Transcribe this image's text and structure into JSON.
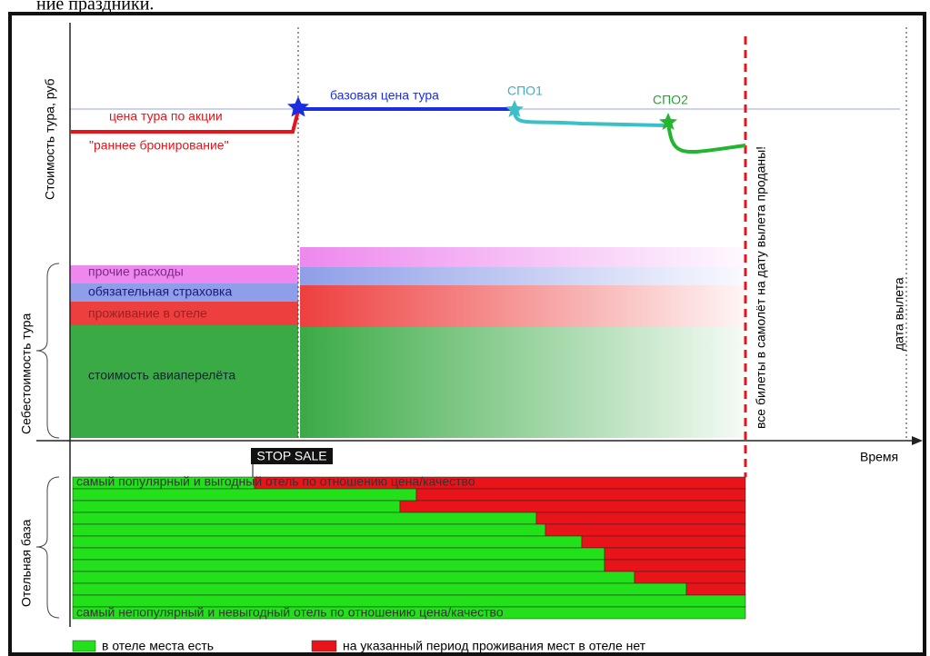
{
  "header_fragment": "ние праздники.",
  "axes": {
    "price": "Стоимость тура, руб",
    "cost": "Себестоимость тура",
    "hotels": "Отельная база",
    "time": "Время"
  },
  "price_labels": {
    "promo": "цена тура по акции",
    "early": "\"раннее бронирование\"",
    "base": "базовая цена тура",
    "spo1": "СПО1",
    "spo2": "СПО2"
  },
  "cost_items": [
    "прочие расходы",
    "обязательная страховка",
    "проживание в отеле",
    "стоимость авиаперелёта"
  ],
  "markers": {
    "sold_out": "все билеты в самолёт на дату вылета проданы!",
    "departure": "дата вылета",
    "stop_sale": "STOP SALE"
  },
  "hotel_notes": {
    "top": "самый популярный и выгодный отель по отношению цена/качество",
    "bottom": "самый непопулярный и невыгодный отель по отношению цена/качество"
  },
  "legend": [
    "в отеле места есть",
    "на указанный период проживания мест в отеле нет"
  ]
}
